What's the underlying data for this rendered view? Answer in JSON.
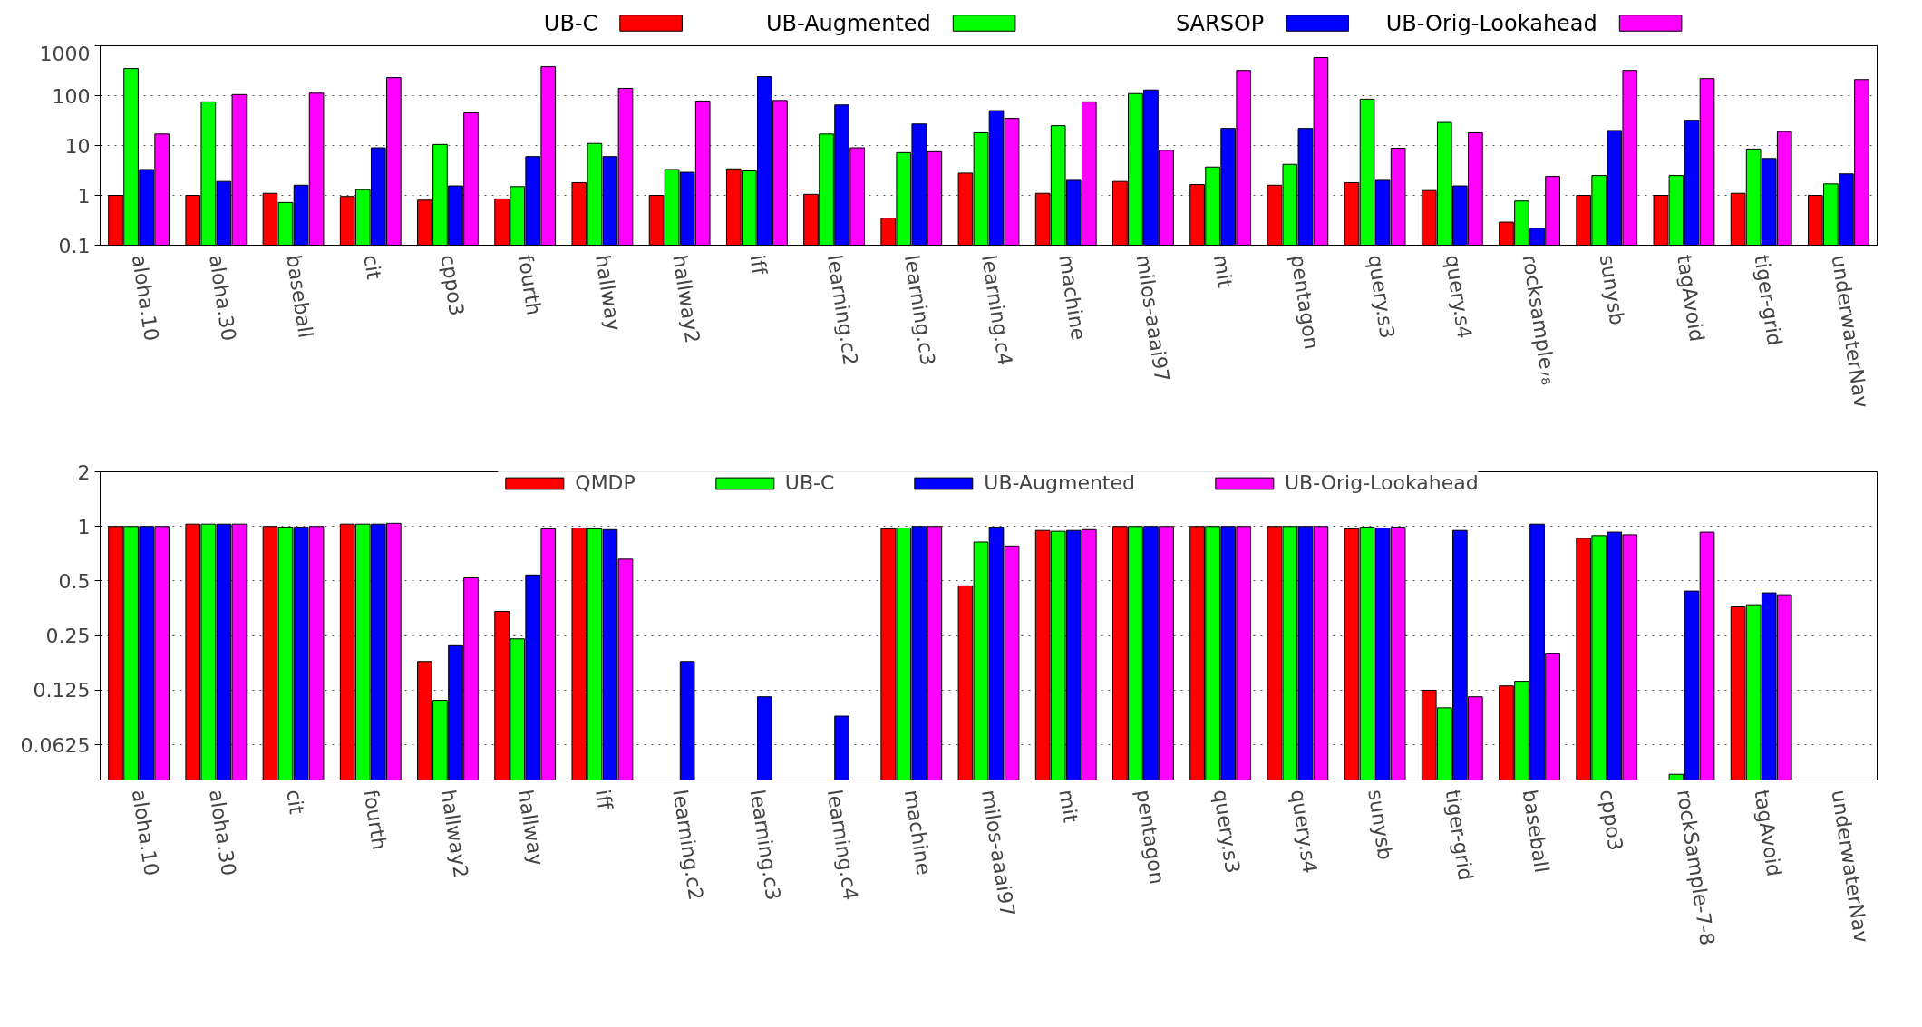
{
  "chart_data": [
    {
      "type": "bar",
      "log": "y",
      "grid": "y",
      "legend": "top",
      "ylim": [
        0.1,
        1000
      ],
      "yticks": [
        0.1,
        1,
        10,
        100,
        1000
      ],
      "categories": [
        "aloha.10",
        "aloha.30",
        "baseball",
        "cit",
        "cppo3",
        "fourth",
        "hallway",
        "hallway2",
        "iff",
        "learning.c2",
        "learning.c3",
        "learning.c4",
        "machine",
        "milos-aaai97",
        "mit",
        "pentagon",
        "query.s3",
        "query.s4",
        "rocksample₇₈",
        "sunysb",
        "tagAvoid",
        "tiger-grid",
        "underwaterNav"
      ],
      "series": [
        {
          "name": "UB-C",
          "color": "#ff0000",
          "values": [
            1.0,
            1.0,
            1.1,
            0.95,
            0.8,
            0.85,
            1.8,
            1.0,
            3.4,
            1.05,
            0.35,
            2.8,
            1.1,
            1.9,
            1.65,
            1.6,
            1.8,
            1.25,
            0.29,
            1.0,
            1.0,
            1.1,
            1.0
          ]
        },
        {
          "name": "UB-Augmented",
          "color": "#00ff00",
          "values": [
            350,
            75,
            0.72,
            1.3,
            10.5,
            1.5,
            11,
            3.3,
            3.1,
            17,
            7.2,
            18,
            25,
            110,
            3.7,
            4.2,
            85,
            29,
            0.77,
            2.5,
            2.5,
            8.5,
            1.7
          ]
        },
        {
          "name": "SARSOP",
          "color": "#0000ff",
          "values": [
            3.3,
            1.9,
            1.6,
            9,
            1.55,
            6,
            6,
            2.9,
            240,
            65,
            27,
            50,
            2.0,
            130,
            22,
            22,
            2.0,
            1.55,
            0.22,
            20,
            32,
            5.5,
            2.7
          ]
        },
        {
          "name": "UB-Orig-Lookahead",
          "color": "#ff00ff",
          "values": [
            17,
            105,
            112,
            230,
            45,
            380,
            140,
            78,
            80,
            9,
            7.5,
            35,
            75,
            8,
            320,
            580,
            8.8,
            18,
            2.4,
            320,
            220,
            19,
            210
          ]
        }
      ]
    },
    {
      "type": "bar",
      "log": "y",
      "grid": "y",
      "legend": "top",
      "ylim": [
        0.04,
        2
      ],
      "yticks": [
        0.0625,
        0.125,
        0.25,
        0.5,
        1,
        2
      ],
      "categories": [
        "aloha.10",
        "aloha.30",
        "cit",
        "fourth",
        "hallway2",
        "hallway",
        "iff",
        "learning.c2",
        "learning.c3",
        "learning.c4",
        "machine",
        "milos-aaai97",
        "mit",
        "pentagon",
        "query.s3",
        "query.s4",
        "sunysb",
        "tiger-grid",
        "baseball",
        "cppo3",
        "rockSample-7-8",
        "tagAvoid",
        "underwaterNav"
      ],
      "series": [
        {
          "name": "QMDP",
          "color": "#ff0000",
          "values": [
            1,
            1.03,
            1,
            1.03,
            0.18,
            0.34,
            0.98,
            null,
            null,
            null,
            0.97,
            0.47,
            0.95,
            1,
            1,
            1,
            0.97,
            0.125,
            0.132,
            0.86,
            null,
            0.36,
            null
          ]
        },
        {
          "name": "UB-C",
          "color": "#00ff00",
          "values": [
            1,
            1.03,
            0.99,
            1.03,
            0.11,
            0.24,
            0.97,
            null,
            null,
            null,
            0.98,
            0.82,
            0.94,
            1,
            1,
            1,
            0.99,
            0.1,
            0.14,
            0.89,
            0.043,
            0.37,
            null
          ]
        },
        {
          "name": "UB-Augmented",
          "color": "#0000ff",
          "values": [
            1,
            1.03,
            0.99,
            1.03,
            0.22,
            0.54,
            0.96,
            0.18,
            0.115,
            0.09,
            1,
            0.99,
            0.95,
            1,
            1,
            1,
            0.98,
            0.95,
            1.03,
            0.93,
            0.44,
            0.43,
            null
          ]
        },
        {
          "name": "UB-Orig-Lookahead",
          "color": "#ff00ff",
          "values": [
            1,
            1.03,
            1,
            1.04,
            0.52,
            0.97,
            0.66,
            null,
            null,
            null,
            1,
            0.78,
            0.96,
            1,
            1,
            1,
            0.99,
            0.115,
            0.2,
            0.9,
            0.93,
            0.42,
            null
          ]
        }
      ]
    }
  ]
}
